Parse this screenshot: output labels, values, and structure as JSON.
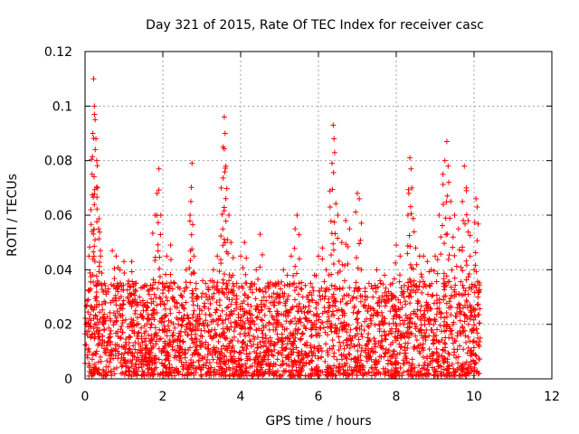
{
  "chart_data": {
    "type": "scatter",
    "title": "Day 321 of 2015, Rate Of TEC Index for receiver casc",
    "xlabel": "GPS time / hours",
    "ylabel": "ROTI / TECUs",
    "xlim": [
      0,
      12
    ],
    "ylim": [
      0,
      0.12
    ],
    "xticks": [
      0,
      2,
      4,
      6,
      8,
      10,
      12
    ],
    "xtick_labels": [
      "0",
      "2",
      "4",
      "6",
      "8",
      "10",
      "12"
    ],
    "yticks": [
      0,
      0.02,
      0.04,
      0.06,
      0.08,
      0.1,
      0.12
    ],
    "ytick_labels": [
      "0",
      "0.02",
      "0.04",
      "0.06",
      "0.08",
      "0.1",
      "0.12"
    ],
    "grid": true,
    "marker": "+",
    "color": "#ff0000",
    "series": [
      {
        "name": "ROTI",
        "points": [
          [
            0.05,
            0.027
          ],
          [
            0.1,
            0.045
          ],
          [
            0.15,
            0.062
          ],
          [
            0.18,
            0.075
          ],
          [
            0.2,
            0.09
          ],
          [
            0.22,
            0.11
          ],
          [
            0.24,
            0.1
          ],
          [
            0.26,
            0.095
          ],
          [
            0.28,
            0.088
          ],
          [
            0.3,
            0.08
          ],
          [
            0.32,
            0.07
          ],
          [
            0.35,
            0.055
          ],
          [
            0.4,
            0.045
          ],
          [
            0.5,
            0.035
          ],
          [
            0.6,
            0.033
          ],
          [
            0.7,
            0.047
          ],
          [
            0.8,
            0.045
          ],
          [
            0.9,
            0.04
          ],
          [
            1.0,
            0.043
          ],
          [
            1.1,
            0.03
          ],
          [
            1.2,
            0.043
          ],
          [
            1.3,
            0.035
          ],
          [
            1.4,
            0.03
          ],
          [
            1.5,
            0.025
          ],
          [
            1.6,
            0.028
          ],
          [
            1.7,
            0.02
          ],
          [
            1.75,
            0.025
          ],
          [
            1.8,
            0.06
          ],
          [
            1.85,
            0.068
          ],
          [
            1.9,
            0.077
          ],
          [
            1.95,
            0.06
          ],
          [
            2.0,
            0.035
          ],
          [
            2.1,
            0.045
          ],
          [
            2.2,
            0.049
          ],
          [
            2.3,
            0.035
          ],
          [
            2.4,
            0.02
          ],
          [
            2.5,
            0.03
          ],
          [
            2.6,
            0.04
          ],
          [
            2.7,
            0.06
          ],
          [
            2.72,
            0.065
          ],
          [
            2.75,
            0.079
          ],
          [
            2.8,
            0.045
          ],
          [
            2.85,
            0.033
          ],
          [
            2.9,
            0.03
          ],
          [
            3.0,
            0.025
          ],
          [
            3.1,
            0.035
          ],
          [
            3.2,
            0.03
          ],
          [
            3.3,
            0.04
          ],
          [
            3.4,
            0.045
          ],
          [
            3.5,
            0.07
          ],
          [
            3.55,
            0.085
          ],
          [
            3.58,
            0.096
          ],
          [
            3.6,
            0.09
          ],
          [
            3.62,
            0.078
          ],
          [
            3.7,
            0.06
          ],
          [
            3.75,
            0.05
          ],
          [
            3.8,
            0.038
          ],
          [
            3.9,
            0.035
          ],
          [
            4.0,
            0.045
          ],
          [
            4.1,
            0.05
          ],
          [
            4.2,
            0.03
          ],
          [
            4.3,
            0.035
          ],
          [
            4.4,
            0.04
          ],
          [
            4.5,
            0.053
          ],
          [
            4.6,
            0.03
          ],
          [
            4.7,
            0.035
          ],
          [
            4.8,
            0.03
          ],
          [
            4.9,
            0.035
          ],
          [
            5.0,
            0.03
          ],
          [
            5.1,
            0.04
          ],
          [
            5.2,
            0.038
          ],
          [
            5.3,
            0.045
          ],
          [
            5.4,
            0.055
          ],
          [
            5.45,
            0.06
          ],
          [
            5.5,
            0.035
          ],
          [
            5.6,
            0.03
          ],
          [
            5.7,
            0.03
          ],
          [
            5.8,
            0.035
          ],
          [
            5.9,
            0.038
          ],
          [
            6.0,
            0.045
          ],
          [
            6.1,
            0.048
          ],
          [
            6.2,
            0.04
          ],
          [
            6.3,
            0.063
          ],
          [
            6.35,
            0.079
          ],
          [
            6.38,
            0.093
          ],
          [
            6.4,
            0.088
          ],
          [
            6.5,
            0.06
          ],
          [
            6.6,
            0.05
          ],
          [
            6.7,
            0.058
          ],
          [
            6.8,
            0.055
          ],
          [
            6.9,
            0.03
          ],
          [
            7.0,
            0.068
          ],
          [
            7.05,
            0.066
          ],
          [
            7.1,
            0.04
          ],
          [
            7.2,
            0.032
          ],
          [
            7.3,
            0.035
          ],
          [
            7.4,
            0.03
          ],
          [
            7.5,
            0.04
          ],
          [
            7.6,
            0.035
          ],
          [
            7.7,
            0.038
          ],
          [
            7.8,
            0.032
          ],
          [
            7.9,
            0.035
          ],
          [
            8.0,
            0.049
          ],
          [
            8.1,
            0.045
          ],
          [
            8.2,
            0.03
          ],
          [
            8.3,
            0.06
          ],
          [
            8.35,
            0.081
          ],
          [
            8.38,
            0.077
          ],
          [
            8.4,
            0.07
          ],
          [
            8.5,
            0.048
          ],
          [
            8.6,
            0.045
          ],
          [
            8.7,
            0.045
          ],
          [
            8.8,
            0.043
          ],
          [
            8.9,
            0.04
          ],
          [
            9.0,
            0.045
          ],
          [
            9.1,
            0.06
          ],
          [
            9.2,
            0.075
          ],
          [
            9.25,
            0.08
          ],
          [
            9.3,
            0.087
          ],
          [
            9.35,
            0.072
          ],
          [
            9.4,
            0.065
          ],
          [
            9.5,
            0.06
          ],
          [
            9.6,
            0.055
          ],
          [
            9.7,
            0.065
          ],
          [
            9.75,
            0.078
          ],
          [
            9.8,
            0.07
          ],
          [
            9.85,
            0.058
          ],
          [
            9.9,
            0.045
          ],
          [
            10.0,
            0.04
          ],
          [
            10.05,
            0.066
          ],
          [
            10.08,
            0.063
          ],
          [
            10.1,
            0.03
          ]
        ]
      }
    ],
    "dense_band": {
      "x_range": [
        0,
        10.15
      ],
      "y_range": [
        0.001,
        0.036
      ],
      "note": "thousands of overlapping + markers covering this region"
    }
  }
}
